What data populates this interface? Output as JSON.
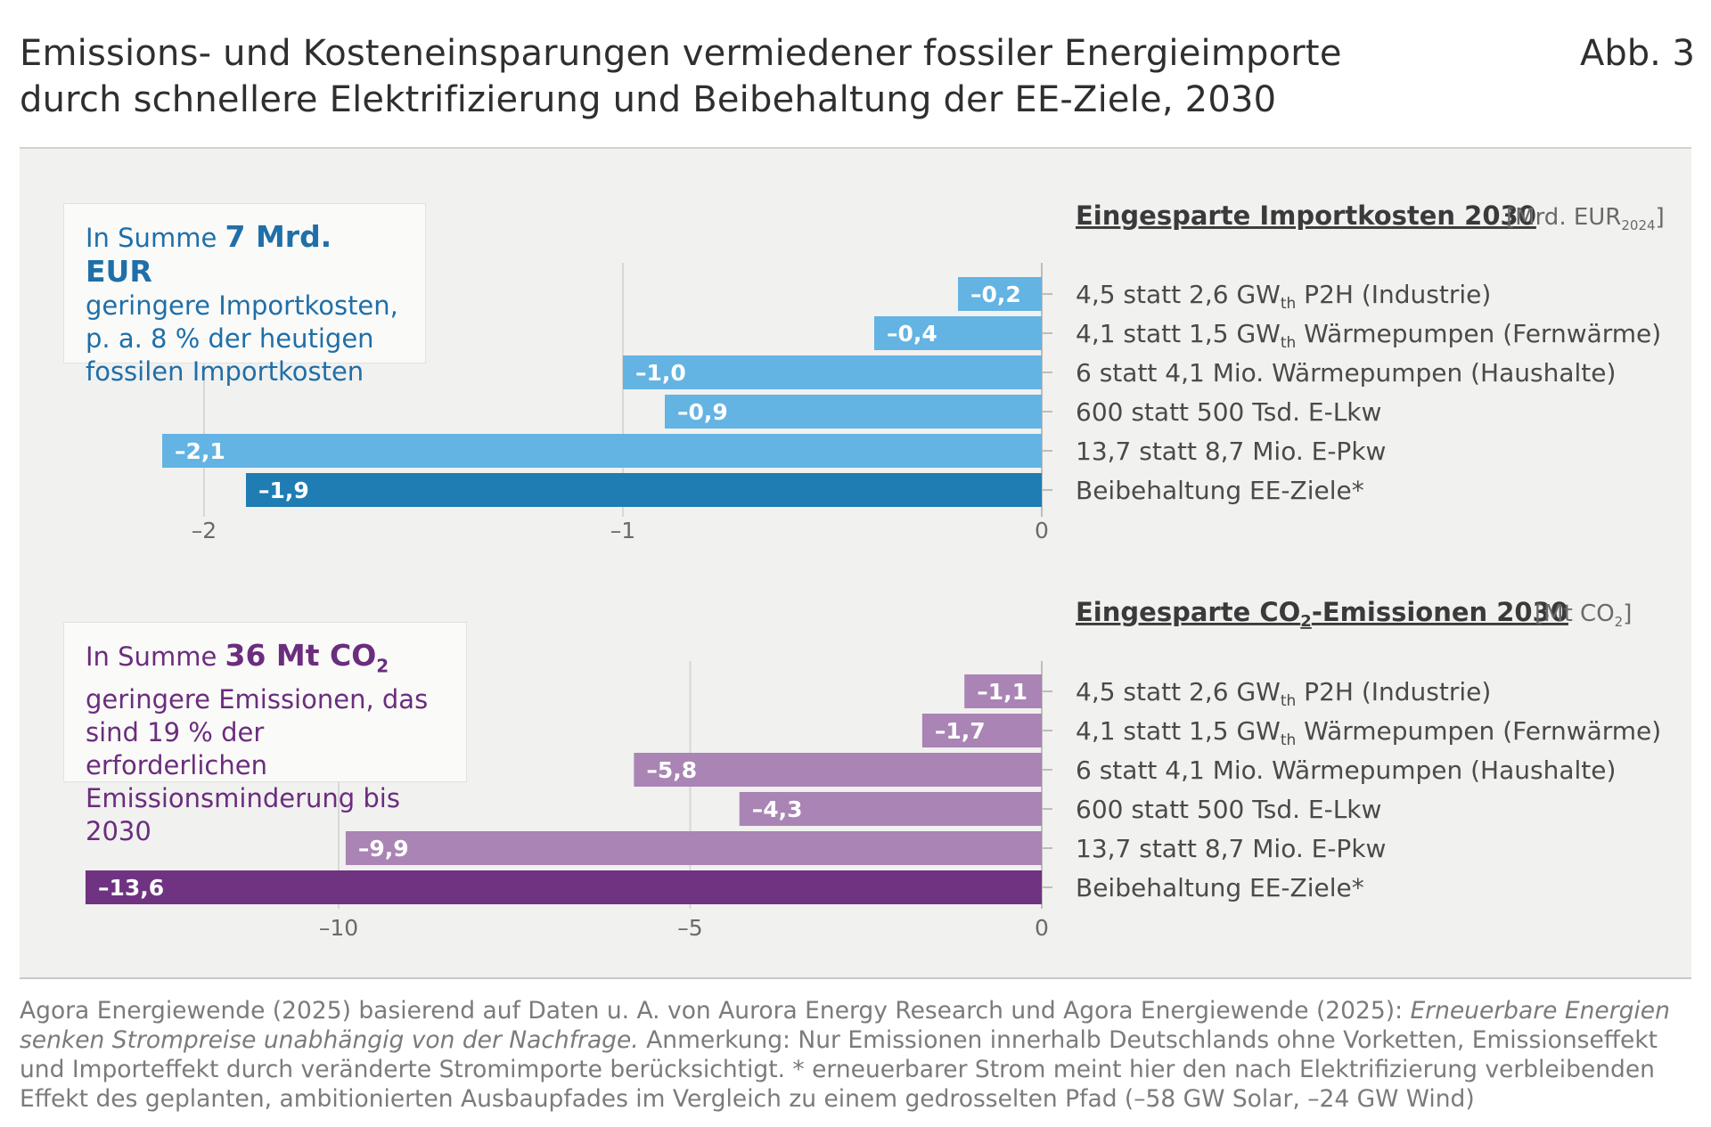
{
  "title": "Emissions- und Kosteneinsparungen vermiedener fossiler Energieimporte durch schnellere Elektrifizierung und Beibehaltung der EE-Ziele, 2030",
  "figure_label": "Abb. 3",
  "colors": {
    "bar_light_blue": "#63b3e3",
    "bar_dark_blue": "#1f7db3",
    "bar_light_purple": "#a984b4",
    "bar_dark_purple": "#6f3382",
    "summary_blue_text": "#1f6fa8",
    "summary_purple_text": "#6b2d7d"
  },
  "summaries": {
    "cost": {
      "prefix": "In Summe",
      "highlight": "7 Mrd. EUR",
      "lines": [
        "geringere Importkosten,",
        "p. a. 8 % der heutigen",
        "fossilen Importkosten"
      ]
    },
    "emissions": {
      "prefix": "In Summe",
      "highlight": "36 Mt CO",
      "highlight_sub": "2",
      "lines": [
        "geringere Emissionen, das",
        "sind 19 % der erforderlichen",
        "Emissionsminderung bis 2030"
      ]
    }
  },
  "chart_data": [
    {
      "type": "bar",
      "orientation": "horizontal",
      "title": "Eingesparte Importkosten 2030",
      "unit": "[Mrd. EUR",
      "unit_sub": "2024",
      "unit_close": "]",
      "categories": [
        {
          "text": "4,5 statt 2,6 GW",
          "sub": "th",
          "rest": " P2H (Industrie)"
        },
        {
          "text": "4,1 statt 1,5 GW",
          "sub": "th",
          "rest": " Wärmepumpen (Fernwärme)"
        },
        {
          "text": "6 statt 4,1 Mio. Wärmepumpen (Haushalte)",
          "sub": "",
          "rest": ""
        },
        {
          "text": "600 statt 500 Tsd. E-Lkw",
          "sub": "",
          "rest": ""
        },
        {
          "text": "13,7 statt 8,7 Mio. E-Pkw",
          "sub": "",
          "rest": ""
        },
        {
          "text": "Beibehaltung  EE-Ziele*",
          "sub": "",
          "rest": ""
        }
      ],
      "values": [
        -0.2,
        -0.4,
        -1.0,
        -0.9,
        -2.1,
        -1.9
      ],
      "value_labels": [
        "–0,2",
        "–0,4",
        "–1,0",
        "–0,9",
        "–2,1",
        "–1,9"
      ],
      "highlight_index": 5,
      "xlim": [
        -2.1,
        0
      ],
      "ticks": [
        -2,
        -1,
        0
      ],
      "tick_labels": [
        "–2",
        "–1",
        "0"
      ]
    },
    {
      "type": "bar",
      "orientation": "horizontal",
      "title": "Eingesparte CO",
      "title_sub": "2",
      "title_rest": "-Emissionen 2030",
      "unit": "[Mt CO",
      "unit_sub": "2",
      "unit_close": "]",
      "categories": [
        {
          "text": "4,5 statt 2,6 GW",
          "sub": "th",
          "rest": " P2H (Industrie)"
        },
        {
          "text": "4,1 statt 1,5 GW",
          "sub": "th",
          "rest": " Wärmepumpen (Fernwärme)"
        },
        {
          "text": "6 statt 4,1 Mio. Wärmepumpen (Haushalte)",
          "sub": "",
          "rest": ""
        },
        {
          "text": "600 statt 500 Tsd. E-Lkw",
          "sub": "",
          "rest": ""
        },
        {
          "text": "13,7 statt 8,7 Mio. E-Pkw",
          "sub": "",
          "rest": ""
        },
        {
          "text": "Beibehaltung  EE-Ziele*",
          "sub": "",
          "rest": ""
        }
      ],
      "values": [
        -1.1,
        -1.7,
        -5.8,
        -4.3,
        -9.9,
        -13.6
      ],
      "value_labels": [
        "–1,1",
        "–1,7",
        "–5,8",
        "–4,3",
        "–9,9",
        "–13,6"
      ],
      "highlight_index": 5,
      "xlim": [
        -13.6,
        0
      ],
      "ticks": [
        -10,
        -5,
        0
      ],
      "tick_labels": [
        "–10",
        "–5",
        "0"
      ]
    }
  ],
  "source": {
    "part1": "Agora Energiewende (2025) basierend auf Daten u. A. von Aurora Energy Research und Agora Energiewende (2025): ",
    "italic": "Erneuerbare Energien senken Strompreise unabhängig von der Nachfrage.",
    "part2": " Anmerkung: Nur Emissionen innerhalb Deutschlands ohne Vorketten, Emissionseffekt und Importeffekt durch veränderte Stromimporte berücksichtigt. * erneuerbarer Strom meint hier den nach Elektrifizierung verbleibenden Effekt des geplanten, ambitionierten Ausbaupfades im Vergleich zu einem gedrosselten Pfad (–58 GW Solar, –24 GW Wind)"
  }
}
